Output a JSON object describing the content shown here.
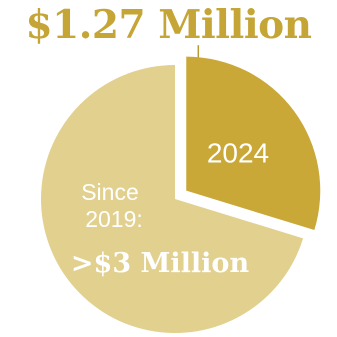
{
  "headline": "$1.27 Million",
  "colors": {
    "headline": "#C4A536",
    "highlight_slice": "#C9A838",
    "rest_slice": "#E2D08F",
    "label_text": "#ffffff",
    "leader_line": "#B79A33"
  },
  "chart_data": {
    "type": "pie",
    "title": "$1.27 Million",
    "slices": [
      {
        "label": "2024",
        "value": 1.27,
        "unit": "Million",
        "exploded": true,
        "color": "#C9A838"
      },
      {
        "label_lines": [
          "Since",
          "2019:"
        ],
        "value_label": ">$3 Million",
        "value": 3.0,
        "unit": "Million",
        "exploded": false,
        "color": "#E2D08F"
      }
    ],
    "legend": "none",
    "grid": false
  }
}
